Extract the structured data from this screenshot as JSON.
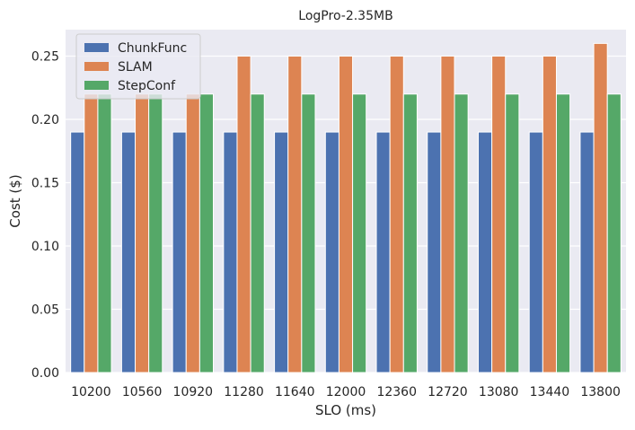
{
  "chart_data": {
    "type": "bar",
    "title": "LogPro-2.35MB",
    "xlabel": "SLO (ms)",
    "ylabel": "Cost ($)",
    "categories": [
      "10200",
      "10560",
      "10920",
      "11280",
      "11640",
      "12000",
      "12360",
      "12720",
      "13080",
      "13440",
      "13800"
    ],
    "series": [
      {
        "name": "ChunkFunc",
        "color": "#4c72b0",
        "values": [
          0.19,
          0.19,
          0.19,
          0.19,
          0.19,
          0.19,
          0.19,
          0.19,
          0.19,
          0.19,
          0.19
        ]
      },
      {
        "name": "SLAM",
        "color": "#dd8452",
        "values": [
          0.22,
          0.22,
          0.22,
          0.25,
          0.25,
          0.25,
          0.25,
          0.25,
          0.25,
          0.25,
          0.26
        ]
      },
      {
        "name": "StepConf",
        "color": "#55a868",
        "values": [
          0.22,
          0.22,
          0.22,
          0.22,
          0.22,
          0.22,
          0.22,
          0.22,
          0.22,
          0.22,
          0.22
        ]
      }
    ],
    "ylim": [
      0,
      0.2709
    ],
    "yticks": [
      "0.00",
      "0.05",
      "0.10",
      "0.15",
      "0.20",
      "0.25"
    ],
    "grid": true,
    "legend_position": "top-left",
    "background_color": "#eaeaf2"
  }
}
